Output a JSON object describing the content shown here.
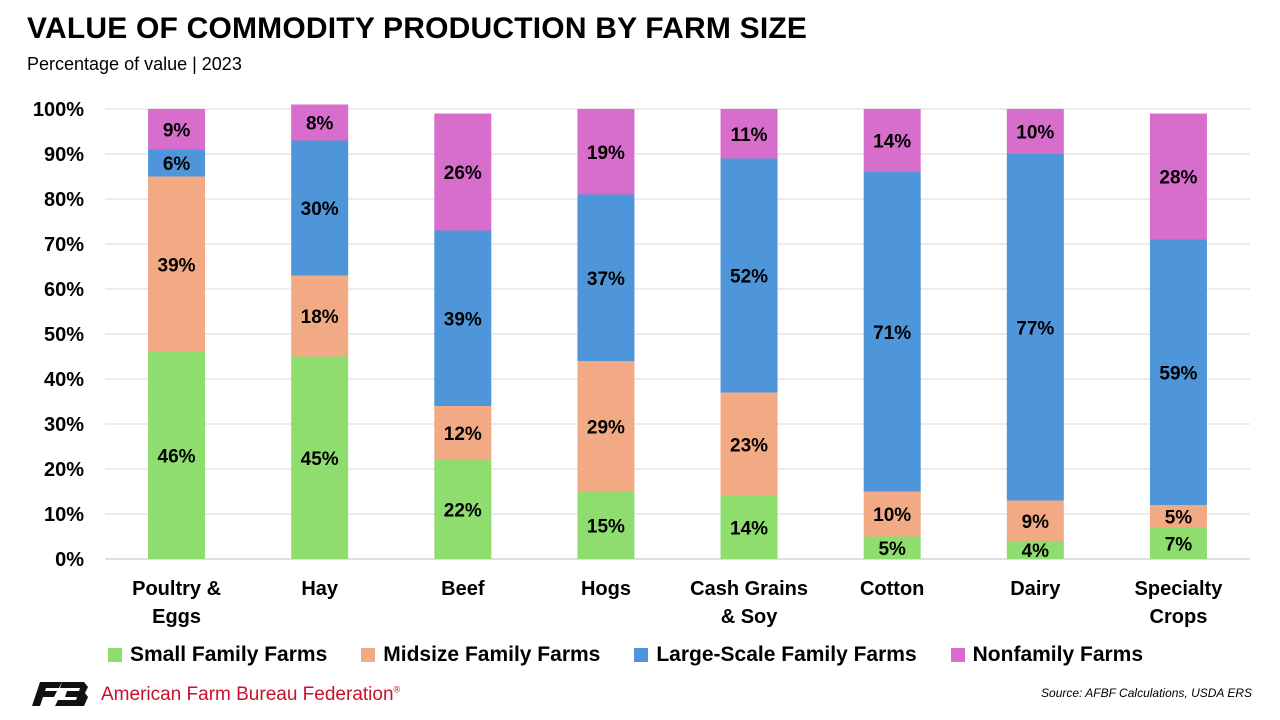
{
  "header": {
    "title": "VALUE OF COMMODITY PRODUCTION BY FARM SIZE",
    "subtitle": "Percentage of value | 2023"
  },
  "chart_data": {
    "type": "bar",
    "stacked": true,
    "categories": [
      [
        "Poultry &",
        "Eggs"
      ],
      [
        "Hay"
      ],
      [
        "Beef"
      ],
      [
        "Hogs"
      ],
      [
        "Cash Grains",
        "& Soy"
      ],
      [
        "Cotton"
      ],
      [
        "Dairy"
      ],
      [
        "Specialty",
        "Crops"
      ]
    ],
    "series": [
      {
        "name": "Small Family Farms",
        "color": "#8fdc6f",
        "values": [
          46,
          45,
          22,
          15,
          14,
          5,
          4,
          7
        ]
      },
      {
        "name": "Midsize Family Farms",
        "color": "#f2aa84",
        "values": [
          39,
          18,
          12,
          29,
          23,
          10,
          9,
          5
        ]
      },
      {
        "name": "Large-Scale Family Farms",
        "color": "#4e95d9",
        "values": [
          6,
          30,
          39,
          37,
          52,
          71,
          77,
          59
        ]
      },
      {
        "name": "Nonfamily Farms",
        "color": "#d86ecc",
        "values": [
          9,
          8,
          26,
          19,
          11,
          14,
          10,
          28
        ]
      }
    ],
    "ylim": [
      0,
      100
    ],
    "yticks": [
      "0%",
      "10%",
      "20%",
      "30%",
      "40%",
      "50%",
      "60%",
      "70%",
      "80%",
      "90%",
      "100%"
    ],
    "grid": true,
    "legend_position": "bottom"
  },
  "footer": {
    "organization": "American Farm Bureau Federation",
    "registered_mark": "®",
    "source": "Source: AFBF Calculations, USDA ERS",
    "logo_text": "FB",
    "logo_color": "#c8102e"
  }
}
